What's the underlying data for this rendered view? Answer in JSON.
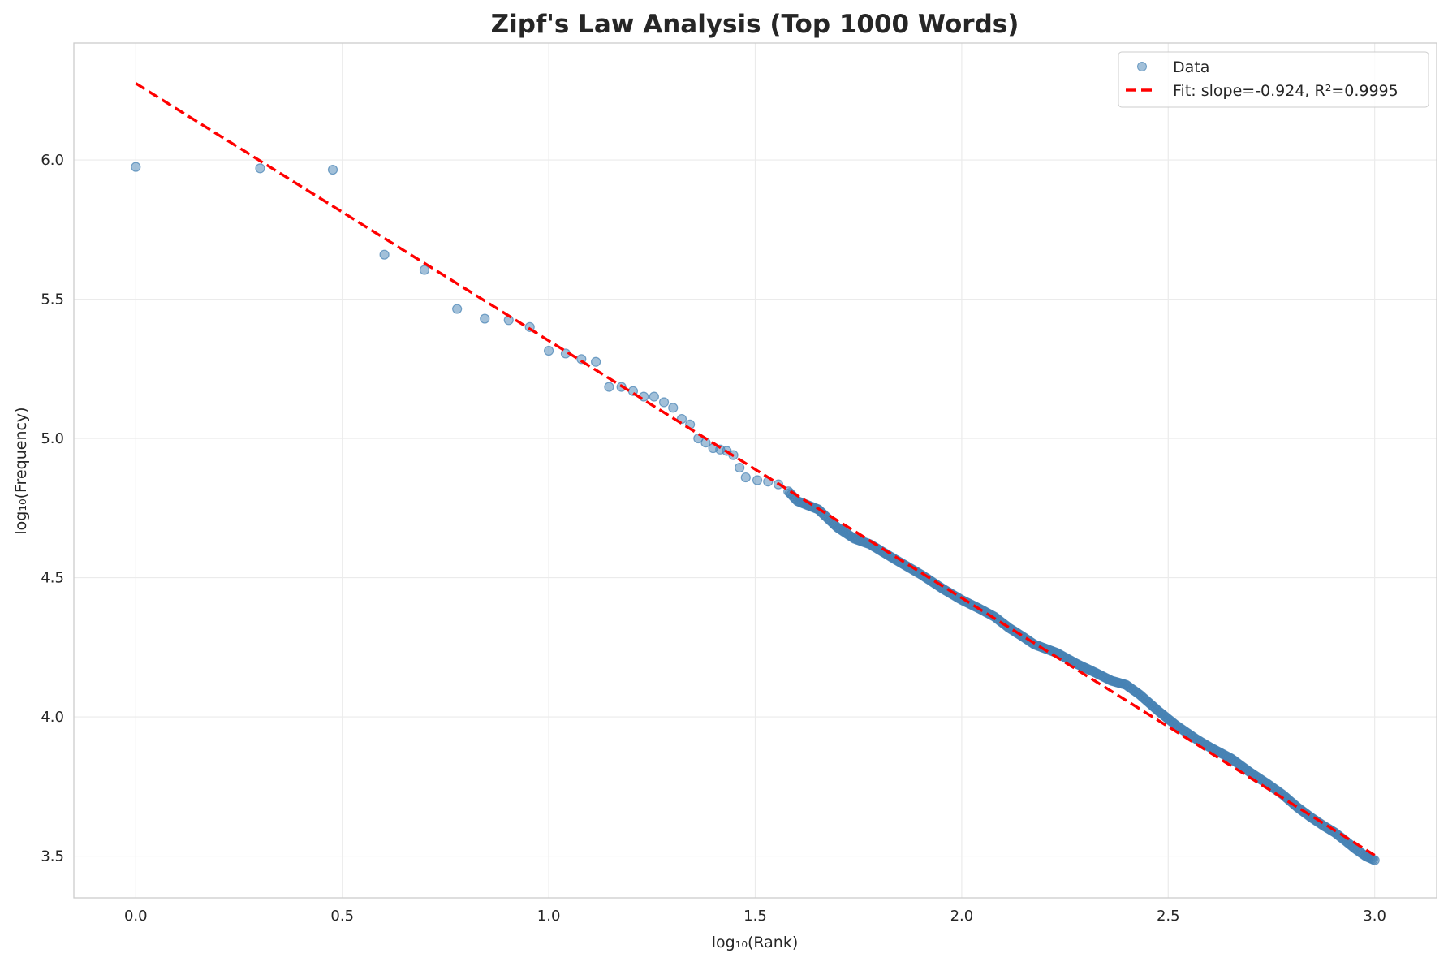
{
  "chart_data": {
    "type": "scatter",
    "title": "Zipf's Law Analysis (Top 1000 Words)",
    "xlabel": "log₁₀(Rank)",
    "ylabel": "log₁₀(Frequency)",
    "xlim": [
      -0.15,
      3.15
    ],
    "ylim": [
      3.35,
      6.42
    ],
    "xticks": [
      0.0,
      0.5,
      1.0,
      1.5,
      2.0,
      2.5,
      3.0
    ],
    "xtick_labels": [
      "0.0",
      "0.5",
      "1.0",
      "1.5",
      "2.0",
      "2.5",
      "3.0"
    ],
    "yticks": [
      3.5,
      4.0,
      4.5,
      5.0,
      5.5,
      6.0
    ],
    "ytick_labels": [
      "3.5",
      "4.0",
      "4.5",
      "5.0",
      "5.5",
      "6.0"
    ],
    "grid": true,
    "legend_position": "top-right",
    "series": [
      {
        "name": "Data",
        "kind": "scatter",
        "color": "#4682b4",
        "x": [
          0,
          0.301,
          0.477,
          0.602,
          0.699,
          0.778,
          0.845,
          0.903,
          0.954,
          1,
          1.041,
          1.079,
          1.114,
          1.146,
          1.176,
          1.204,
          1.23,
          1.255,
          1.279,
          1.301,
          1.322,
          1.342,
          1.362,
          1.38,
          1.398,
          1.415,
          1.431,
          1.447,
          1.462,
          1.477,
          1.505,
          1.531,
          1.556,
          1.58,
          1.602,
          1.653,
          1.699,
          1.74,
          1.778,
          1.845,
          1.903,
          1.954,
          2,
          2.041,
          2.079,
          2.114,
          2.146,
          2.176,
          2.23,
          2.279,
          2.322,
          2.362,
          2.398,
          2.431,
          2.477,
          2.519,
          2.568,
          2.602,
          2.653,
          2.699,
          2.74,
          2.778,
          2.813,
          2.845,
          2.875,
          2.903,
          2.929,
          2.954,
          2.978,
          3
        ],
        "y": [
          5.975,
          5.97,
          5.965,
          5.66,
          5.605,
          5.465,
          5.43,
          5.425,
          5.4,
          5.315,
          5.305,
          5.285,
          5.275,
          5.185,
          5.185,
          5.17,
          5.15,
          5.15,
          5.13,
          5.11,
          5.07,
          5.05,
          5.0,
          4.985,
          4.965,
          4.96,
          4.955,
          4.94,
          4.895,
          4.86,
          4.85,
          4.845,
          4.835,
          4.81,
          4.775,
          4.745,
          4.68,
          4.64,
          4.62,
          4.56,
          4.51,
          4.46,
          4.42,
          4.39,
          4.36,
          4.32,
          4.29,
          4.26,
          4.23,
          4.19,
          4.16,
          4.13,
          4.115,
          4.08,
          4.02,
          3.97,
          3.92,
          3.89,
          3.85,
          3.8,
          3.76,
          3.72,
          3.675,
          3.64,
          3.61,
          3.585,
          3.555,
          3.525,
          3.5,
          3.485
        ]
      },
      {
        "name": "Fit: slope=-0.924, R²=0.9995",
        "kind": "line",
        "color": "#ff0000",
        "slope": -0.924,
        "intercept": 6.275,
        "r_squared": 0.9995,
        "x": [
          0,
          3
        ]
      }
    ]
  }
}
